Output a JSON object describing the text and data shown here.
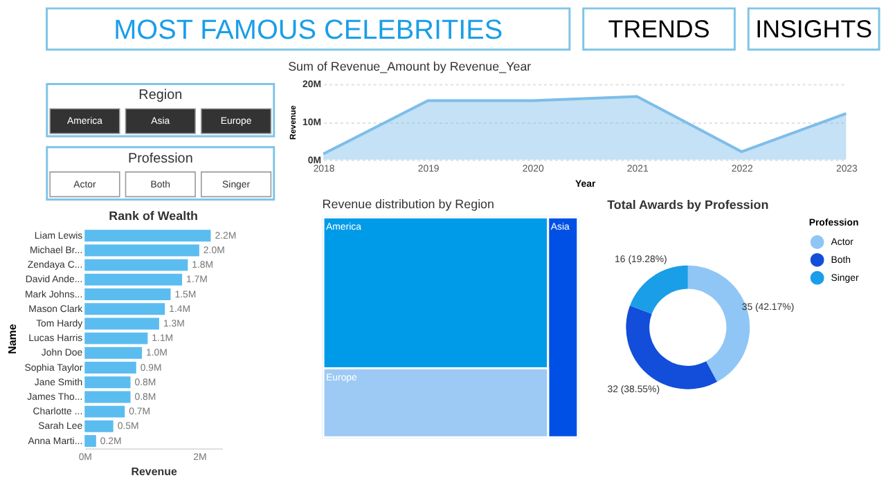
{
  "chart_data": [
    {
      "type": "other",
      "title": "MOST FAMOUS CELEBRITIES",
      "annotations": [
        "TRENDS",
        "INSIGHTS"
      ]
    },
    {
      "type": "other",
      "title": "Region",
      "categories": [
        "America",
        "Asia",
        "Europe"
      ],
      "colors": [
        "#333333",
        "#333333",
        "#333333"
      ]
    },
    {
      "type": "other",
      "title": "Profession",
      "categories": [
        "Actor",
        "Both",
        "Singer"
      ],
      "colors": [
        "#ffffff",
        "#ffffff",
        "#ffffff"
      ]
    },
    {
      "type": "bar",
      "orientation": "horizontal",
      "title": "Rank of Wealth",
      "xlabel": "Revenue",
      "ylabel": "Name",
      "categories": [
        "Liam Lewis",
        "Michael Br...",
        "Zendaya C...",
        "David Ande...",
        "Mark Johns...",
        "Mason Clark",
        "Tom Hardy",
        "Lucas Harris",
        "John Doe",
        "Sophia Taylor",
        "Jane Smith",
        "James Tho...",
        "Charlotte ...",
        "Sarah Lee",
        "Anna Marti..."
      ],
      "values": [
        2200000,
        2000000,
        1800000,
        1700000,
        1500000,
        1400000,
        1300000,
        1100000,
        1000000,
        900000,
        800000,
        800000,
        700000,
        500000,
        200000
      ],
      "value_labels": [
        "2.2M",
        "2.0M",
        "1.8M",
        "1.7M",
        "1.5M",
        "1.4M",
        "1.3M",
        "1.1M",
        "1.0M",
        "0.9M",
        "0.8M",
        "0.8M",
        "0.7M",
        "0.5M",
        "0.2M"
      ],
      "color": "#5bbcf0",
      "xlim": [
        0,
        2400000
      ],
      "xticks": [
        {
          "value": 0,
          "label": "0M"
        },
        {
          "value": 2000000,
          "label": "2M"
        }
      ],
      "grid": false
    },
    {
      "type": "area",
      "title": "Sum of Revenue_Amount by Revenue_Year",
      "xlabel": "Year",
      "ylabel": "Revenue",
      "categories": [
        "2018",
        "2019",
        "2020",
        "2021",
        "2022",
        "2023"
      ],
      "values": [
        1500000,
        15600000,
        15600000,
        16700000,
        2100000,
        12200000
      ],
      "color": "#7dbde9",
      "ylim": [
        0,
        20000000
      ],
      "yticks": [
        {
          "value": 0,
          "label": "0M"
        },
        {
          "value": 10000000,
          "label": "10M"
        },
        {
          "value": 20000000,
          "label": "20M"
        }
      ],
      "grid": "y"
    },
    {
      "type": "other",
      "title": "Revenue distribution by Region",
      "categories": [
        "America",
        "Asia",
        "Europe"
      ],
      "colors": [
        "#009be8",
        "#0050e6",
        "#9ccaf5"
      ]
    },
    {
      "type": "donut",
      "title": "Total Awards by Profession",
      "legend_title": "Profession",
      "legend": "right",
      "categories": [
        "Actor",
        "Both",
        "Singer"
      ],
      "values": [
        35,
        32,
        16
      ],
      "value_labels": [
        "35 (42.17%)",
        "32 (38.55%)",
        "16 (19.28%)"
      ],
      "colors": [
        "#8fc6f5",
        "#124ed9",
        "#1a9ee8"
      ]
    }
  ]
}
